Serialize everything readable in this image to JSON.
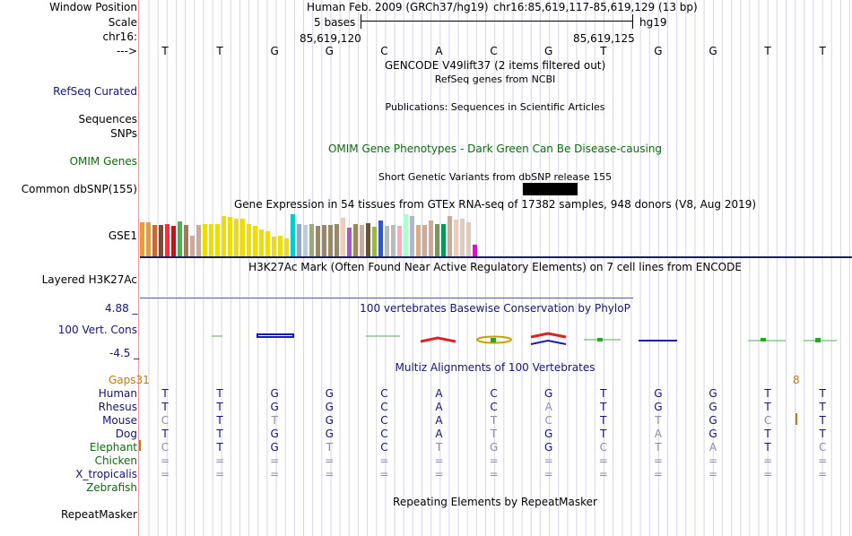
{
  "header": {
    "labels": {
      "window_position": "Window Position",
      "scale": "Scale",
      "chrom": "chr16:",
      "arrow": "--->"
    },
    "assembly": "Human Feb. 2009 (GRCh37/hg19)",
    "position": "chr16:85,619,117-85,619,129 (13 bp)",
    "scale_text": "5 bases",
    "db": "hg19",
    "coord_left": "85,619,120",
    "coord_right": "85,619,125"
  },
  "bases": [
    "T",
    "T",
    "G",
    "G",
    "C",
    "A",
    "C",
    "G",
    "T",
    "G",
    "G",
    "T",
    "T"
  ],
  "tracks": {
    "gencode_title": "GENCODE V49lift37 (2 items filtered out)",
    "refseq_title": "RefSeq genes from NCBI",
    "refseq_label": "RefSeq Curated",
    "pubs_title": "Publications: Sequences in Scientific Articles",
    "sequences_label": "Sequences",
    "snps_label": "SNPs",
    "omim_title": "OMIM Gene Phenotypes - Dark Green Can Be Disease-causing",
    "omim_label": "OMIM Genes",
    "dbsnp_title": "Short Genetic Variants from dbSNP release 155",
    "dbsnp_label": "Common dbSNP(155)",
    "gtex_title": "Gene Expression in 54 tissues from GTEx RNA-seq of 17382 samples, 948 donors (V8, Aug 2019)",
    "gse_label": "GSE1",
    "h3k27_title": "H3K27Ac Mark (Often Found Near Active Regulatory Elements) on 7 cell lines from ENCODE",
    "h3k27_label": "Layered H3K27Ac",
    "cons_max": "4.88 _",
    "cons_label": "100 Vert. Cons",
    "cons_min": "-4.5 _",
    "phylop_title": "100 vertebrates Basewise Conservation by PhyloP",
    "multiz_title": "Multiz Alignments of 100 Vertebrates",
    "gaps_label": "Gaps",
    "gaps_left": "31",
    "gaps_right": "8",
    "repeat_title": "Repeating Elements by RepeatMasker",
    "repeat_label": "RepeatMasker"
  },
  "gtex_values": [
    40,
    40,
    36,
    36,
    38,
    35,
    41,
    36,
    24,
    36,
    38,
    38,
    38,
    47,
    46,
    44,
    44,
    38,
    35,
    31,
    29,
    23,
    24,
    21,
    49,
    38,
    37,
    38,
    35,
    37,
    37,
    38,
    45,
    33,
    38,
    36,
    39,
    34,
    42,
    35,
    37,
    35,
    49,
    47,
    36,
    36,
    42,
    38,
    38,
    47,
    43,
    44,
    40,
    14
  ],
  "gtex_colors": [
    "#ee9933",
    "#ee9933",
    "#cc6633",
    "#7a4f2f",
    "#ee3344",
    "#cc1111",
    "#55aa55",
    "#aa7755",
    "#ccaa99",
    "#ccaa99",
    "#eedd00",
    "#eedd00",
    "#eedd00",
    "#eedd00",
    "#eedd00",
    "#eedd00",
    "#eedd00",
    "#eedd00",
    "#eedd00",
    "#eedd00",
    "#eedd00",
    "#eedd00",
    "#eedd00",
    "#eedd00",
    "#00cccc",
    "#88aacc",
    "#bbccdd",
    "#99aa77",
    "#998866",
    "#998866",
    "#998866",
    "#998866",
    "#eeccbb",
    "#aa55cc",
    "#998866",
    "#ccaa99",
    "#665533",
    "#99bb33",
    "#3355cc",
    "#bbbbbb",
    "#bbbbbb",
    "#ffaabb",
    "#aaffcc",
    "#aabbcc",
    "#ddaa88",
    "#ccaa99",
    "#ccaa99",
    "#779955",
    "#009955",
    "#ccaa99",
    "#eeccbb",
    "#ddccbb",
    "#ddccbb",
    "#ee00ee"
  ],
  "species": [
    {
      "name": "Human",
      "bases": [
        "T",
        "T",
        "G",
        "G",
        "C",
        "A",
        "C",
        "G",
        "T",
        "G",
        "G",
        "T",
        "T"
      ],
      "dim": [
        0,
        0,
        0,
        0,
        0,
        0,
        0,
        0,
        0,
        0,
        0,
        0,
        0
      ]
    },
    {
      "name": "Rhesus",
      "bases": [
        "T",
        "T",
        "G",
        "G",
        "C",
        "A",
        "C",
        "A",
        "T",
        "G",
        "G",
        "T",
        "T"
      ],
      "dim": [
        0,
        0,
        0,
        0,
        0,
        0,
        0,
        1,
        0,
        0,
        0,
        0,
        0
      ]
    },
    {
      "name": "Mouse",
      "bases": [
        "C",
        "T",
        "T",
        "G",
        "C",
        "A",
        "T",
        "C",
        "T",
        "T",
        "G",
        "C",
        "T"
      ],
      "dim": [
        1,
        0,
        1,
        0,
        0,
        0,
        1,
        1,
        0,
        1,
        0,
        1,
        0
      ]
    },
    {
      "name": "Dog",
      "bases": [
        "T",
        "T",
        "G",
        "G",
        "C",
        "A",
        "T",
        "G",
        "T",
        "A",
        "G",
        "T",
        "T"
      ],
      "dim": [
        0,
        0,
        0,
        0,
        0,
        0,
        1,
        0,
        0,
        1,
        0,
        0,
        0
      ]
    },
    {
      "name": "Elephant",
      "bases": [
        "C",
        "T",
        "G",
        "T",
        "C",
        "T",
        "G",
        "G",
        "C",
        "T",
        "A",
        "T",
        "C"
      ],
      "dim": [
        1,
        0,
        0,
        1,
        0,
        1,
        1,
        0,
        1,
        1,
        1,
        0,
        1
      ]
    },
    {
      "name": "Chicken",
      "bases": [
        "=",
        "=",
        "=",
        "=",
        "=",
        "=",
        "=",
        "=",
        "=",
        "=",
        "=",
        "=",
        "="
      ],
      "dim": [
        1,
        1,
        1,
        1,
        1,
        1,
        1,
        1,
        1,
        1,
        1,
        1,
        1
      ]
    },
    {
      "name": "X_tropicalis",
      "bases": [
        "=",
        "=",
        "=",
        "=",
        "=",
        "=",
        "=",
        "=",
        "=",
        "=",
        "=",
        "=",
        "="
      ],
      "dim": [
        1,
        1,
        1,
        1,
        1,
        1,
        1,
        1,
        1,
        1,
        1,
        1,
        1
      ]
    },
    {
      "name": "Zebrafish",
      "bases": [],
      "dim": []
    }
  ]
}
